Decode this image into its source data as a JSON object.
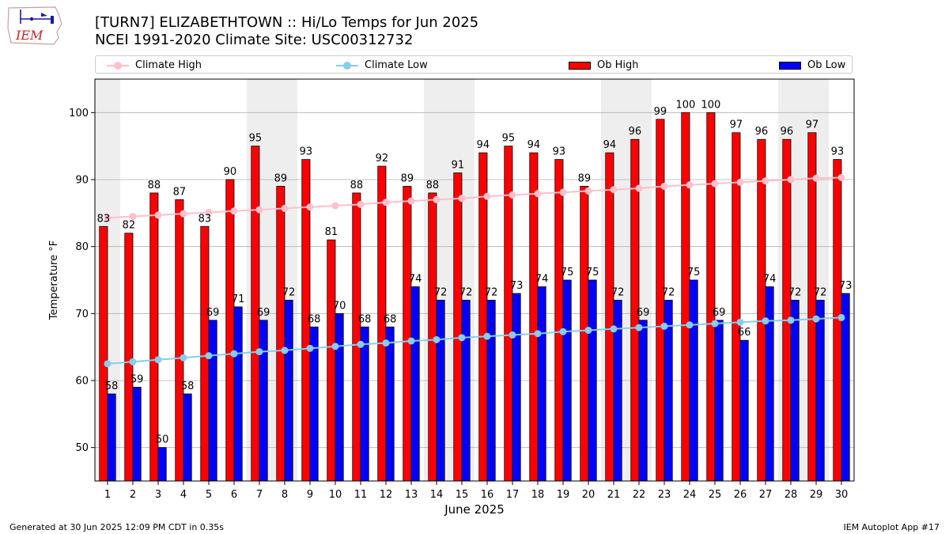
{
  "logo": {
    "text": "IEM",
    "icon": "iowa-state-outline-icon"
  },
  "header": {
    "title_line1": "[TURN7] ELIZABETHTOWN :: Hi/Lo Temps for Jun 2025",
    "title_line2": "NCEI 1991-2020 Climate Site: USC00312732"
  },
  "footer": {
    "left": "Generated at 30 Jun 2025 12:09 PM CDT in 0.35s",
    "right": "IEM Autoplot App #17"
  },
  "colors": {
    "ob_high": "#ff0000",
    "ob_low": "#0000ff",
    "climate_high": "#ffc0cb",
    "climate_low": "#87ceeb",
    "weekend_band": "#eeeeee",
    "grid": "#b0b0b0"
  },
  "chart_data": {
    "type": "bar",
    "xlabel": "June 2025",
    "ylabel": "Temperature °F",
    "ylim": [
      45,
      105
    ],
    "yticks": [
      50,
      60,
      70,
      80,
      90,
      100
    ],
    "grid": "horizontal",
    "legend_placement": "top",
    "categories": [
      1,
      2,
      3,
      4,
      5,
      6,
      7,
      8,
      9,
      10,
      11,
      12,
      13,
      14,
      15,
      16,
      17,
      18,
      19,
      20,
      21,
      22,
      23,
      24,
      25,
      26,
      27,
      28,
      29,
      30
    ],
    "weekend_days": [
      1,
      7,
      8,
      14,
      15,
      21,
      22,
      28,
      29
    ],
    "series": [
      {
        "name": "Ob High",
        "type": "bar",
        "values": [
          83,
          82,
          88,
          87,
          83,
          90,
          95,
          89,
          93,
          81,
          88,
          92,
          89,
          88,
          91,
          94,
          95,
          94,
          93,
          89,
          94,
          96,
          99,
          100,
          100,
          97,
          96,
          96,
          97,
          93
        ]
      },
      {
        "name": "Ob Low",
        "type": "bar",
        "values": [
          58,
          59,
          50,
          58,
          69,
          71,
          69,
          72,
          68,
          70,
          68,
          68,
          74,
          72,
          72,
          72,
          73,
          74,
          75,
          75,
          72,
          69,
          72,
          75,
          69,
          66,
          74,
          72,
          72,
          73
        ]
      },
      {
        "name": "Climate High",
        "type": "line",
        "values": [
          84.3,
          84.5,
          84.7,
          84.9,
          85.1,
          85.3,
          85.5,
          85.7,
          85.9,
          86.1,
          86.3,
          86.6,
          86.8,
          87.0,
          87.2,
          87.5,
          87.7,
          87.9,
          88.1,
          88.3,
          88.5,
          88.7,
          89.0,
          89.2,
          89.4,
          89.6,
          89.8,
          90.0,
          90.2,
          90.3
        ]
      },
      {
        "name": "Climate Low",
        "type": "line",
        "values": [
          62.5,
          62.8,
          63.1,
          63.4,
          63.7,
          64.0,
          64.3,
          64.5,
          64.8,
          65.1,
          65.4,
          65.6,
          65.9,
          66.1,
          66.4,
          66.6,
          66.8,
          67.0,
          67.3,
          67.5,
          67.7,
          67.9,
          68.1,
          68.3,
          68.5,
          68.7,
          68.9,
          69.0,
          69.2,
          69.4
        ]
      }
    ]
  }
}
